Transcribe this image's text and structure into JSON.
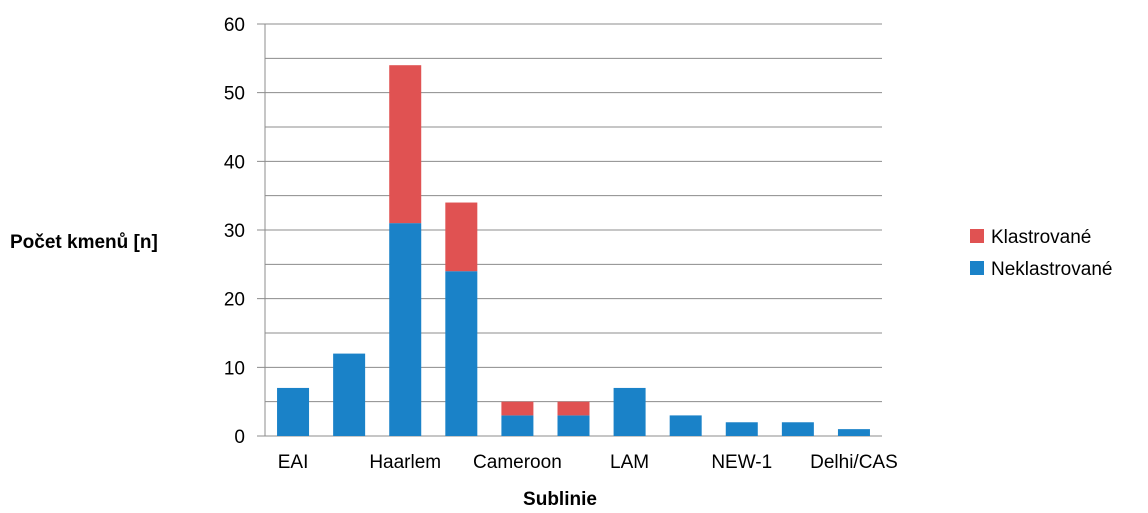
{
  "chart_data": {
    "type": "bar",
    "stacked": true,
    "title": "",
    "xlabel": "Sublinie",
    "ylabel": "Počet kmenů [n]",
    "ylim": [
      0,
      60
    ],
    "yticks": [
      0,
      10,
      20,
      30,
      40,
      50,
      60
    ],
    "minor_gridlines": true,
    "legend_position": "right",
    "categories": [
      "EAI",
      "",
      "Haarlem",
      "",
      "Cameroon",
      "",
      "LAM",
      "",
      "NEW-1",
      "",
      "Delhi/CAS"
    ],
    "category_labels_shown": [
      "EAI",
      "Haarlem",
      "Cameroon",
      "LAM",
      "NEW-1",
      "Delhi/CAS"
    ],
    "series": [
      {
        "name": "Neklastrované",
        "color": "#1a82c8",
        "values": [
          7,
          12,
          31,
          24,
          3,
          3,
          7,
          3,
          2,
          2,
          1
        ]
      },
      {
        "name": "Klastrované",
        "color": "#e05252",
        "values": [
          0,
          0,
          23,
          10,
          2,
          2,
          0,
          0,
          0,
          0,
          0
        ]
      }
    ],
    "legend_order": [
      "Klastrované",
      "Neklastrované"
    ]
  }
}
